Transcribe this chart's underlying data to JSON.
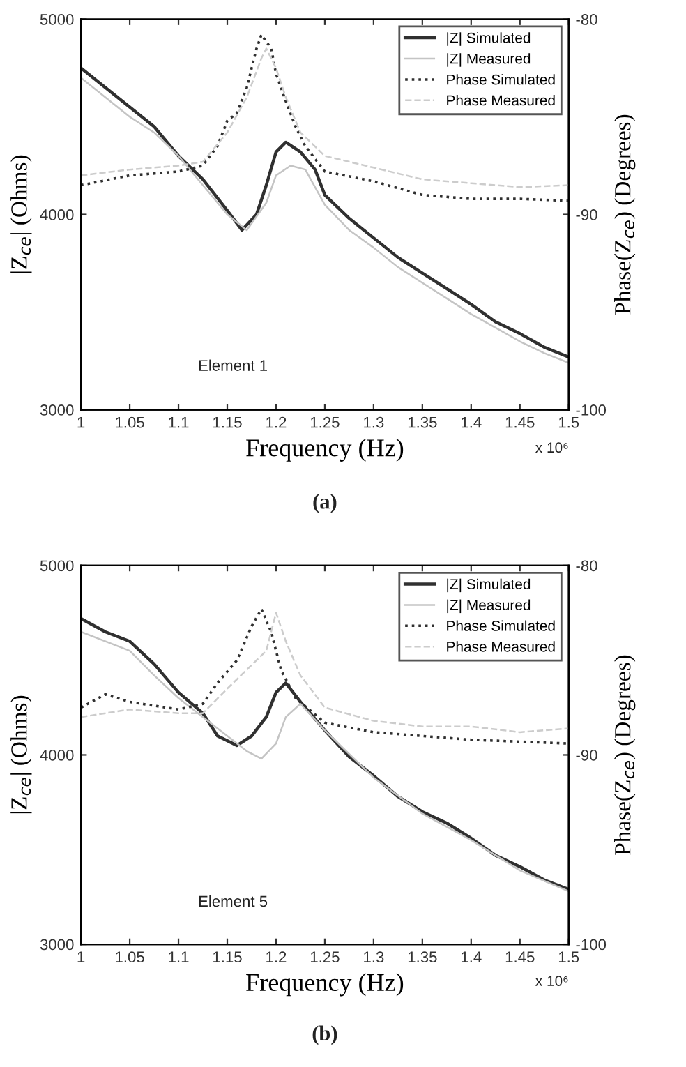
{
  "chart_data": [
    {
      "type": "line",
      "xlabel": "Frequency (Hz)",
      "ylabel": "|Z$_{ce}$| (Ohms)",
      "y2label": "Phase(Z$_{ce}$) (Degrees)",
      "annotations": [
        "Element 1",
        "x 10⁶",
        "(a)"
      ],
      "xlim": [
        1,
        1.5
      ],
      "xticks": [
        1,
        1.05,
        1.1,
        1.15,
        1.2,
        1.25,
        1.3,
        1.35,
        1.4,
        1.45,
        1.5
      ],
      "ylim": [
        3000,
        5000
      ],
      "yticks": [
        3000,
        4000,
        5000
      ],
      "y2lim": [
        -100,
        -80
      ],
      "y2ticks": [
        -100,
        -90,
        -80
      ],
      "legend": "top right",
      "grid": false,
      "series": [
        {
          "name": "|Z| Simulated",
          "color": "#303030",
          "line_style": "solid",
          "x": [
            1.0,
            1.025,
            1.05,
            1.075,
            1.1,
            1.125,
            1.15,
            1.165,
            1.18,
            1.19,
            1.2,
            1.21,
            1.225,
            1.24,
            1.25,
            1.275,
            1.3,
            1.325,
            1.35,
            1.375,
            1.4,
            1.425,
            1.45,
            1.475,
            1.5
          ],
          "values": [
            4750,
            4650,
            4550,
            4450,
            4300,
            4180,
            4020,
            3920,
            4000,
            4150,
            4320,
            4370,
            4320,
            4230,
            4100,
            3980,
            3880,
            3780,
            3700,
            3620,
            3540,
            3450,
            3390,
            3320,
            3270
          ]
        },
        {
          "name": "|Z| Measured",
          "color": "#c4c4c4",
          "line_style": "solid",
          "x": [
            1.0,
            1.025,
            1.05,
            1.075,
            1.1,
            1.125,
            1.15,
            1.17,
            1.19,
            1.2,
            1.215,
            1.23,
            1.25,
            1.275,
            1.3,
            1.325,
            1.35,
            1.375,
            1.4,
            1.425,
            1.45,
            1.475,
            1.5
          ],
          "values": [
            4700,
            4600,
            4500,
            4420,
            4300,
            4150,
            4000,
            3920,
            4060,
            4200,
            4250,
            4230,
            4050,
            3920,
            3830,
            3730,
            3650,
            3570,
            3490,
            3420,
            3350,
            3290,
            3240
          ]
        },
        {
          "name": "Phase Simulated",
          "color": "#303030",
          "line_style": "dotted",
          "axis": "y2",
          "x": [
            1.0,
            1.05,
            1.1,
            1.125,
            1.14,
            1.15,
            1.16,
            1.17,
            1.18,
            1.185,
            1.195,
            1.2,
            1.21,
            1.22,
            1.23,
            1.25,
            1.3,
            1.35,
            1.4,
            1.45,
            1.5
          ],
          "values": [
            -88.5,
            -88.0,
            -87.8,
            -87.5,
            -86.5,
            -85.2,
            -84.8,
            -83.5,
            -81.5,
            -80.8,
            -81.5,
            -82.8,
            -84.2,
            -85.5,
            -86.5,
            -87.8,
            -88.3,
            -89.0,
            -89.2,
            -89.2,
            -89.3
          ]
        },
        {
          "name": "Phase Measured",
          "color": "#cccccc",
          "line_style": "dashed",
          "axis": "y2",
          "x": [
            1.0,
            1.05,
            1.1,
            1.125,
            1.15,
            1.17,
            1.185,
            1.19,
            1.2,
            1.21,
            1.225,
            1.25,
            1.3,
            1.35,
            1.4,
            1.45,
            1.5
          ],
          "values": [
            -88.0,
            -87.7,
            -87.5,
            -87.3,
            -85.8,
            -84.0,
            -82.0,
            -81.5,
            -82.5,
            -84.0,
            -85.8,
            -87.0,
            -87.6,
            -88.2,
            -88.4,
            -88.6,
            -88.5
          ]
        }
      ]
    },
    {
      "type": "line",
      "xlabel": "Frequency (Hz)",
      "ylabel": "|Z$_{ce}$| (Ohms)",
      "y2label": "Phase(Z$_{ce}$) (Degrees)",
      "annotations": [
        "Element 5",
        "x 10⁶",
        "(b)"
      ],
      "xlim": [
        1,
        1.5
      ],
      "xticks": [
        1,
        1.05,
        1.1,
        1.15,
        1.2,
        1.25,
        1.3,
        1.35,
        1.4,
        1.45,
        1.5
      ],
      "ylim": [
        3000,
        5000
      ],
      "yticks": [
        3000,
        4000,
        5000
      ],
      "y2lim": [
        -100,
        -80
      ],
      "y2ticks": [
        -100,
        -90,
        -80
      ],
      "legend": "top right",
      "grid": false,
      "series": [
        {
          "name": "|Z| Simulated",
          "color": "#303030",
          "line_style": "solid",
          "x": [
            1.0,
            1.025,
            1.05,
            1.075,
            1.1,
            1.125,
            1.14,
            1.16,
            1.175,
            1.19,
            1.2,
            1.21,
            1.225,
            1.25,
            1.275,
            1.3,
            1.325,
            1.35,
            1.375,
            1.4,
            1.425,
            1.45,
            1.475,
            1.5
          ],
          "values": [
            4720,
            4650,
            4600,
            4480,
            4330,
            4220,
            4100,
            4050,
            4100,
            4200,
            4330,
            4380,
            4280,
            4130,
            3990,
            3890,
            3780,
            3700,
            3640,
            3560,
            3470,
            3410,
            3340,
            3290
          ]
        },
        {
          "name": "|Z| Measured",
          "color": "#c4c4c4",
          "line_style": "solid",
          "x": [
            1.0,
            1.05,
            1.075,
            1.1,
            1.125,
            1.15,
            1.17,
            1.185,
            1.2,
            1.21,
            1.225,
            1.25,
            1.3,
            1.35,
            1.4,
            1.45,
            1.5
          ],
          "values": [
            4650,
            4550,
            4420,
            4300,
            4200,
            4100,
            4020,
            3980,
            4060,
            4200,
            4270,
            4130,
            3880,
            3690,
            3550,
            3390,
            3280
          ]
        },
        {
          "name": "Phase Simulated",
          "color": "#303030",
          "line_style": "dotted",
          "axis": "y2",
          "x": [
            1.0,
            1.025,
            1.05,
            1.1,
            1.125,
            1.14,
            1.16,
            1.175,
            1.185,
            1.195,
            1.205,
            1.22,
            1.25,
            1.3,
            1.35,
            1.4,
            1.45,
            1.5
          ],
          "values": [
            -87.5,
            -86.8,
            -87.2,
            -87.6,
            -87.3,
            -86.2,
            -85.0,
            -83.2,
            -82.3,
            -83.5,
            -85.5,
            -87.0,
            -88.3,
            -88.8,
            -89.0,
            -89.2,
            -89.3,
            -89.4
          ]
        },
        {
          "name": "Phase Measured",
          "color": "#cccccc",
          "line_style": "dashed",
          "axis": "y2",
          "x": [
            1.0,
            1.05,
            1.1,
            1.125,
            1.15,
            1.17,
            1.19,
            1.2,
            1.21,
            1.225,
            1.25,
            1.3,
            1.35,
            1.4,
            1.45,
            1.5
          ],
          "values": [
            -88.0,
            -87.6,
            -87.8,
            -87.8,
            -86.5,
            -85.5,
            -84.5,
            -82.5,
            -84.0,
            -85.8,
            -87.5,
            -88.2,
            -88.5,
            -88.5,
            -88.8,
            -88.6
          ]
        }
      ]
    }
  ]
}
